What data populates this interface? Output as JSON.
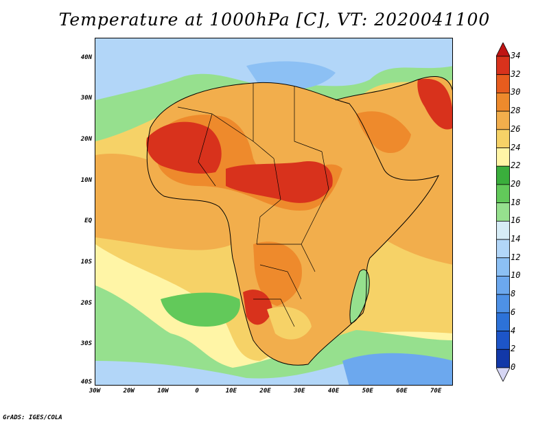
{
  "title": "Temperature at 1000hPa [C], VT: 2020041100",
  "credit": "GrADS: IGES/COLA",
  "map": {
    "projection": "lat-lon",
    "lon_range": [
      -30,
      75
    ],
    "lat_range": [
      -40,
      45
    ],
    "y_ticks": [
      {
        "label": "40N",
        "lat": 40
      },
      {
        "label": "30N",
        "lat": 30
      },
      {
        "label": "20N",
        "lat": 20
      },
      {
        "label": "10N",
        "lat": 10
      },
      {
        "label": "EQ",
        "lat": 0
      },
      {
        "label": "10S",
        "lat": -10
      },
      {
        "label": "20S",
        "lat": -20
      },
      {
        "label": "30S",
        "lat": -30
      },
      {
        "label": "40S",
        "lat": -40
      }
    ],
    "x_ticks": [
      {
        "label": "30W",
        "lon": -30
      },
      {
        "label": "20W",
        "lon": -20
      },
      {
        "label": "10W",
        "lon": -10
      },
      {
        "label": "0",
        "lon": 0
      },
      {
        "label": "10E",
        "lon": 10
      },
      {
        "label": "20E",
        "lon": 20
      },
      {
        "label": "30E",
        "lon": 30
      },
      {
        "label": "40E",
        "lon": 40
      },
      {
        "label": "50E",
        "lon": 50
      },
      {
        "label": "60E",
        "lon": 60
      },
      {
        "label": "70E",
        "lon": 70
      }
    ]
  },
  "colorbar": {
    "levels": [
      "0",
      "2",
      "4",
      "6",
      "8",
      "10",
      "12",
      "14",
      "16",
      "18",
      "20",
      "22",
      "24",
      "26",
      "28",
      "30",
      "32",
      "34"
    ],
    "colors": [
      "#0a1f6e",
      "#1238a8",
      "#1d55c8",
      "#2d72d8",
      "#4e91e6",
      "#6ca8ee",
      "#8cc0f4",
      "#b2d6f8",
      "#d6ecf6",
      "#96e08e",
      "#62c95a",
      "#3aae3c",
      "#fff5a6",
      "#f6d267",
      "#f2ae4c",
      "#ee8a2c",
      "#e75c1e",
      "#d8321c",
      "#bf1414"
    ]
  }
}
